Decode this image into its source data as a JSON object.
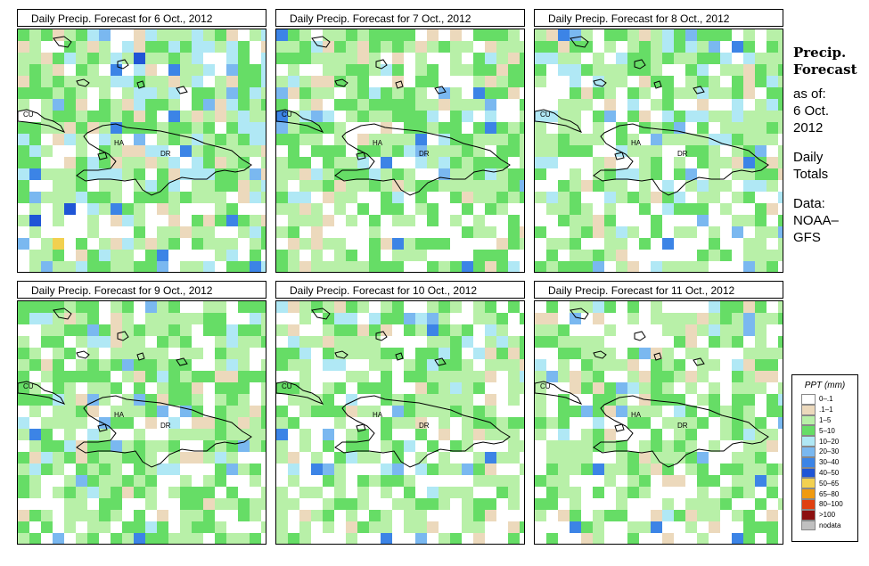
{
  "panels": [
    {
      "title": "Daily Precip. Forecast for  6 Oct., 2012"
    },
    {
      "title": "Daily Precip. Forecast for  7 Oct., 2012"
    },
    {
      "title": "Daily Precip. Forecast for  8 Oct., 2012"
    },
    {
      "title": "Daily Precip. Forecast for  9 Oct., 2012"
    },
    {
      "title": "Daily Precip. Forecast for  10 Oct., 2012"
    },
    {
      "title": "Daily Precip. Forecast for  11 Oct., 2012"
    }
  ],
  "map_labels": {
    "cu": "CU",
    "ha": "HA",
    "dr": "DR"
  },
  "side": {
    "heading1": "Precip.",
    "heading2": "Forecast",
    "asof": "as of:",
    "date1": "6 Oct.",
    "date2": "2012",
    "daily": "Daily",
    "totals": "Totals",
    "data1": "Data:",
    "data2": "NOAA–",
    "data3": "GFS"
  },
  "legend": {
    "title": "PPT (mm)",
    "items": [
      {
        "label": "0–.1",
        "color": "#ffffff"
      },
      {
        "label": ".1–1",
        "color": "#ecd9bc"
      },
      {
        "label": "1–5",
        "color": "#b8f0a8"
      },
      {
        "label": "5–10",
        "color": "#66dd66"
      },
      {
        "label": "10–20",
        "color": "#b0e8f5"
      },
      {
        "label": "20–30",
        "color": "#7ab8f0"
      },
      {
        "label": "30–40",
        "color": "#3c84e6"
      },
      {
        "label": "40–50",
        "color": "#1f55d6"
      },
      {
        "label": "50–65",
        "color": "#f2d050"
      },
      {
        "label": "65–80",
        "color": "#f09a10"
      },
      {
        "label": "80–100",
        "color": "#e04010"
      },
      {
        "label": ">100",
        "color": "#8c1010"
      },
      {
        "label": "nodata",
        "color": "#c0c0c0"
      }
    ]
  }
}
